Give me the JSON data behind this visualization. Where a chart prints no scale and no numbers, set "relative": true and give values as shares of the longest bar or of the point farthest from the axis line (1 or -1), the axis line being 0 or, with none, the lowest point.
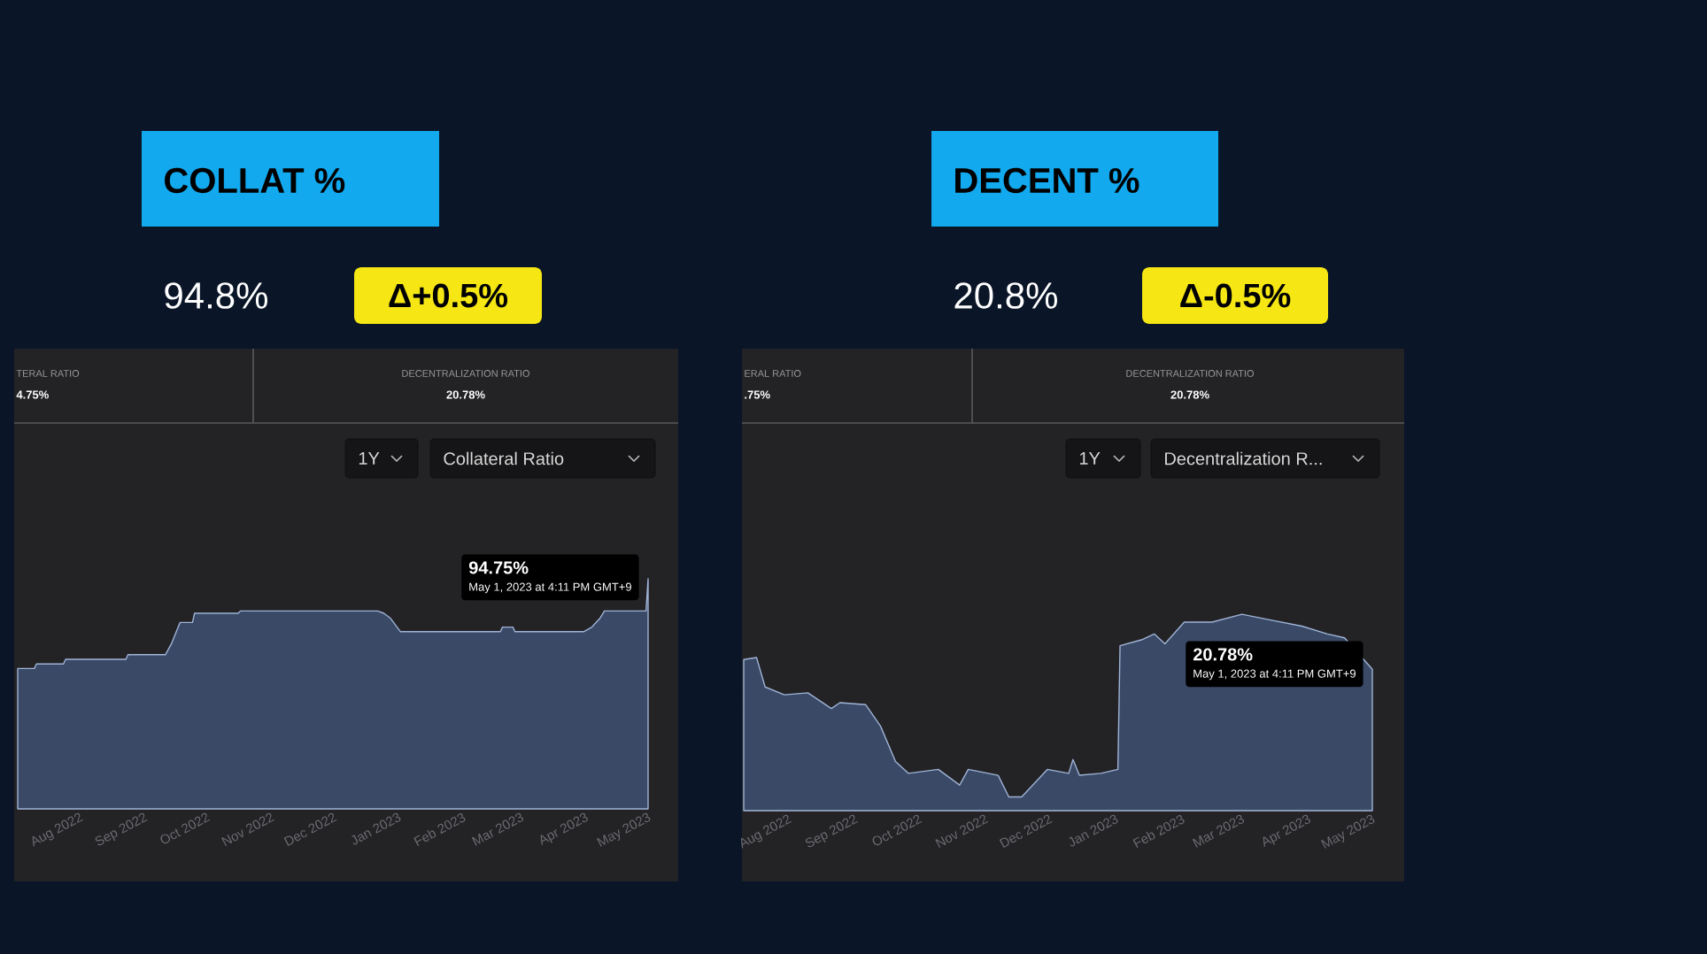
{
  "chart_data": [
    {
      "type": "area",
      "title": "COLLAT %",
      "subtitle": "94.8%",
      "relative": true,
      "color": "#9fb3d6",
      "annotations": [
        "Δ+0.5%",
        "TERAL RATIO",
        "4.75%",
        "DECENTRALIZATION RATIO",
        "20.78%",
        "1Y",
        "Collateral Ratio",
        "94.75%",
        "May 1, 2023 at 4:11 PM GMT+9"
      ],
      "x": [
        "2022-07-02",
        "2022-07-10",
        "2022-07-11",
        "2022-07-24",
        "2022-07-25",
        "2022-08-23",
        "2022-08-24",
        "2022-09-11",
        "2022-09-14",
        "2022-09-18",
        "2022-09-24",
        "2022-09-25",
        "2022-10-16",
        "2022-10-17",
        "2022-12-22",
        "2022-12-25",
        "2022-12-28",
        "2023-01-02",
        "2023-02-19",
        "2023-02-20",
        "2023-02-25",
        "2023-02-26",
        "2023-03-31",
        "2023-04-04",
        "2023-04-08",
        "2023-04-10",
        "2023-04-30",
        "2023-05-01"
      ],
      "values": [
        0.61,
        0.61,
        0.63,
        0.63,
        0.65,
        0.65,
        0.67,
        0.67,
        0.72,
        0.81,
        0.81,
        0.85,
        0.85,
        0.86,
        0.86,
        0.85,
        0.83,
        0.77,
        0.77,
        0.79,
        0.79,
        0.77,
        0.77,
        0.79,
        0.83,
        0.86,
        0.86,
        1
      ],
      "xlim": [
        "2022-07-02",
        "2023-05-01"
      ],
      "xticks": [
        {
          "value": "2022-08-01",
          "label": "Aug 2022"
        },
        {
          "value": "2022-09-01",
          "label": "Sep 2022"
        },
        {
          "value": "2022-10-01",
          "label": "Oct 2022"
        },
        {
          "value": "2022-11-01",
          "label": "Nov 2022"
        },
        {
          "value": "2022-12-01",
          "label": "Dec 2022"
        },
        {
          "value": "2023-01-01",
          "label": "Jan 2023"
        },
        {
          "value": "2023-02-01",
          "label": "Feb 2023"
        },
        {
          "value": "2023-03-01",
          "label": "Mar 2023"
        },
        {
          "value": "2023-04-01",
          "label": "Apr 2023"
        },
        {
          "value": "2023-05-01",
          "label": "May 2023"
        }
      ]
    },
    {
      "type": "area",
      "title": "DECENT %",
      "subtitle": "20.8%",
      "relative": true,
      "color": "#9fb3d6",
      "annotations": [
        "Δ-0.5%",
        "ERAL RATIO",
        ".75%",
        "DECENTRALIZATION RATIO",
        "20.78%",
        "1Y",
        "Decentralization R...",
        "20.78%",
        "May 1, 2023 at 4:11 PM GMT+9"
      ],
      "x": [
        "2022-07-11",
        "2022-07-17",
        "2022-07-21",
        "2022-07-30",
        "2022-08-10",
        "2022-08-21",
        "2022-08-25",
        "2022-09-06",
        "2022-09-13",
        "2022-09-20",
        "2022-09-26",
        "2022-10-10",
        "2022-10-20",
        "2022-10-24",
        "2022-11-07",
        "2022-11-12",
        "2022-11-18",
        "2022-11-30",
        "2022-12-10",
        "2022-12-12",
        "2022-12-15",
        "2022-12-25",
        "2023-01-02",
        "2023-01-03",
        "2023-01-13",
        "2023-01-19",
        "2023-01-24",
        "2023-02-02",
        "2023-02-15",
        "2023-03-01",
        "2023-03-15",
        "2023-03-29",
        "2023-04-10",
        "2023-04-18",
        "2023-04-24",
        "2023-05-01"
      ],
      "values": [
        0.77,
        0.78,
        0.63,
        0.59,
        0.6,
        0.52,
        0.55,
        0.54,
        0.43,
        0.25,
        0.19,
        0.21,
        0.13,
        0.21,
        0.18,
        0.07,
        0.07,
        0.21,
        0.19,
        0.26,
        0.18,
        0.19,
        0.21,
        0.84,
        0.87,
        0.9,
        0.85,
        0.96,
        0.96,
        1,
        0.97,
        0.94,
        0.9,
        0.88,
        null,
        0.72
      ],
      "xlim": [
        "2022-07-11",
        "2023-05-01"
      ],
      "xticks": [
        {
          "value": "2022-08-01",
          "label": "Aug 2022"
        },
        {
          "value": "2022-09-01",
          "label": "Sep 2022"
        },
        {
          "value": "2022-10-01",
          "label": "Oct 2022"
        },
        {
          "value": "2022-11-01",
          "label": "Nov 2022"
        },
        {
          "value": "2022-12-01",
          "label": "Dec 2022"
        },
        {
          "value": "2023-01-01",
          "label": "Jan 2023"
        },
        {
          "value": "2023-02-01",
          "label": "Feb 2023"
        },
        {
          "value": "2023-03-01",
          "label": "Mar 2023"
        },
        {
          "value": "2023-04-01",
          "label": "Apr 2023"
        },
        {
          "value": "2023-05-01",
          "label": "May 2023"
        }
      ]
    }
  ]
}
